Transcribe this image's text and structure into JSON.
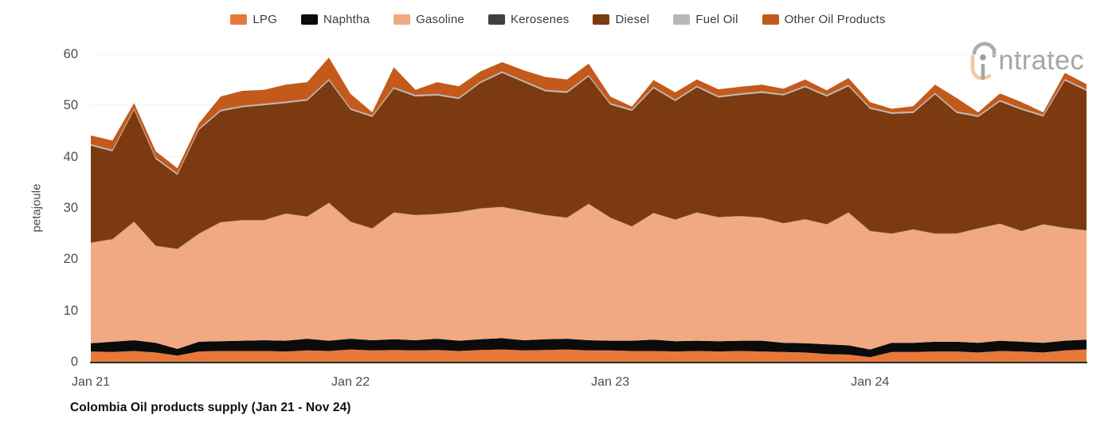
{
  "logo": {
    "text": "ntratec"
  },
  "colors": {
    "gridline": "#ededed",
    "axis_line": "#2a2a2a",
    "axis_text": "#4d4d4d",
    "title_text": "#0e0e0e",
    "logo_gray": "#a5a5a5",
    "logo_tan": "#eecaa2"
  },
  "chart_data": {
    "type": "area",
    "stacked": true,
    "title": "Colombia Oil products supply (Jan 21 - Nov 24)",
    "ylabel": "petajoule",
    "unit": "petajoule",
    "ylim": [
      0,
      60
    ],
    "yticks": [
      0,
      10,
      20,
      30,
      40,
      50,
      60
    ],
    "grid": "horizontal light gray lines",
    "legend_position": "top-center",
    "categories": [
      "Jan 21",
      "Feb 21",
      "Mar 21",
      "Apr 21",
      "May 21",
      "Jun 21",
      "Jul 21",
      "Aug 21",
      "Sep 21",
      "Oct 21",
      "Nov 21",
      "Dec 21",
      "Jan 22",
      "Feb 22",
      "Mar 22",
      "Apr 22",
      "May 22",
      "Jun 22",
      "Jul 22",
      "Aug 22",
      "Sep 22",
      "Oct 22",
      "Nov 22",
      "Dec 22",
      "Jan 23",
      "Feb 23",
      "Mar 23",
      "Apr 23",
      "May 23",
      "Jun 23",
      "Jul 23",
      "Aug 23",
      "Sep 23",
      "Oct 23",
      "Nov 23",
      "Dec 23",
      "Jan 24",
      "Feb 24",
      "Mar 24",
      "Apr 24",
      "May 24",
      "Jun 24",
      "Jul 24",
      "Aug 24",
      "Sep 24",
      "Oct 24",
      "Nov 24"
    ],
    "x_ticks": [
      {
        "label": "Jan 21",
        "index": 0
      },
      {
        "label": "Jan 22",
        "index": 12
      },
      {
        "label": "Jan 23",
        "index": 24
      },
      {
        "label": "Jan 24",
        "index": 36
      }
    ],
    "series": [
      {
        "name": "LPG",
        "color": "#e5793a",
        "values": [
          2.0,
          1.9,
          2.1,
          1.8,
          1.2,
          2.0,
          2.1,
          2.1,
          2.1,
          2.0,
          2.2,
          2.1,
          2.4,
          2.2,
          2.3,
          2.2,
          2.3,
          2.1,
          2.3,
          2.4,
          2.2,
          2.3,
          2.4,
          2.2,
          2.2,
          2.1,
          2.1,
          2.0,
          2.1,
          2.0,
          2.1,
          2.0,
          1.9,
          1.8,
          1.5,
          1.4,
          0.9,
          1.9,
          1.9,
          2.0,
          2.0,
          1.8,
          2.1,
          2.0,
          1.8,
          2.2,
          2.4
        ]
      },
      {
        "name": "Naphtha",
        "color": "#0b0b0b",
        "values": [
          1.6,
          2.0,
          2.1,
          1.9,
          1.3,
          1.9,
          1.9,
          2.0,
          2.1,
          2.1,
          2.3,
          2.0,
          2.1,
          2.0,
          2.1,
          2.0,
          2.2,
          2.0,
          2.1,
          2.2,
          2.0,
          2.1,
          2.1,
          2.0,
          1.9,
          2.0,
          2.2,
          2.0,
          2.0,
          2.0,
          2.0,
          2.1,
          1.8,
          1.8,
          1.9,
          1.8,
          1.5,
          1.8,
          1.8,
          1.9,
          1.9,
          1.9,
          2.0,
          1.9,
          1.9,
          1.9,
          1.9
        ]
      },
      {
        "name": "Gasoline",
        "color": "#f0a981",
        "values": [
          19.6,
          20.0,
          23.1,
          18.9,
          19.5,
          21.1,
          23.2,
          23.5,
          23.4,
          24.8,
          23.8,
          26.9,
          22.8,
          21.8,
          24.7,
          24.4,
          24.3,
          25.1,
          25.5,
          25.6,
          25.2,
          24.2,
          23.6,
          26.6,
          24.0,
          22.3,
          24.7,
          23.7,
          25.0,
          24.2,
          24.3,
          24.0,
          23.3,
          24.2,
          23.4,
          25.9,
          23.1,
          21.3,
          22.1,
          21.1,
          21.1,
          22.3,
          22.8,
          21.6,
          23.1,
          22.0,
          21.3
        ]
      },
      {
        "name": "Kerosenes",
        "color": "#3f4040",
        "values": [
          0.05,
          0.05,
          0.05,
          0.05,
          0.05,
          0.05,
          0.05,
          0.05,
          0.05,
          0.05,
          0.05,
          0.05,
          0.05,
          0.05,
          0.05,
          0.05,
          0.05,
          0.05,
          0.05,
          0.05,
          0.05,
          0.05,
          0.05,
          0.05,
          0.05,
          0.05,
          0.05,
          0.05,
          0.05,
          0.05,
          0.05,
          0.05,
          0.05,
          0.05,
          0.05,
          0.05,
          0.05,
          0.05,
          0.05,
          0.05,
          0.05,
          0.05,
          0.05,
          0.05,
          0.05,
          0.05,
          0.05
        ]
      },
      {
        "name": "Diesel",
        "color": "#7b3a10",
        "values": [
          18.9,
          17.1,
          21.8,
          16.9,
          14.4,
          20.2,
          21.6,
          22.0,
          22.4,
          21.5,
          22.6,
          23.8,
          21.8,
          21.7,
          24.1,
          23.1,
          23.1,
          22.0,
          24.4,
          26.1,
          25.1,
          24.1,
          24.3,
          24.8,
          22.0,
          22.5,
          24.3,
          23.1,
          24.4,
          23.3,
          23.6,
          24.3,
          24.9,
          25.7,
          24.9,
          24.6,
          23.8,
          23.3,
          22.7,
          27.1,
          23.5,
          21.7,
          23.8,
          23.6,
          21.0,
          28.7,
          27.2
        ]
      },
      {
        "name": "Fuel Oil",
        "color": "#b8b8b8",
        "values": [
          0.3,
          0.3,
          0.3,
          0.3,
          0.3,
          0.3,
          0.3,
          0.3,
          0.3,
          0.3,
          0.3,
          0.3,
          0.3,
          0.3,
          0.3,
          0.3,
          0.3,
          0.3,
          0.3,
          0.3,
          0.3,
          0.3,
          0.3,
          0.3,
          0.3,
          0.3,
          0.3,
          0.3,
          0.3,
          0.3,
          0.3,
          0.3,
          0.3,
          0.3,
          0.3,
          0.3,
          0.3,
          0.3,
          0.3,
          0.3,
          0.3,
          0.3,
          0.3,
          0.3,
          0.3,
          0.3,
          0.3
        ]
      },
      {
        "name": "Other Oil Products",
        "color": "#c35a1b",
        "values": [
          1.7,
          1.8,
          1.0,
          1.2,
          1.0,
          1.0,
          2.6,
          2.9,
          2.7,
          3.3,
          3.3,
          4.2,
          2.8,
          0.6,
          3.9,
          1.0,
          2.3,
          2.2,
          2.0,
          1.8,
          2.0,
          2.5,
          2.3,
          2.2,
          1.3,
          0.5,
          1.3,
          1.4,
          1.2,
          1.3,
          1.3,
          1.3,
          1.0,
          1.2,
          0.9,
          1.3,
          1.0,
          0.7,
          1.0,
          1.6,
          2.6,
          0.6,
          1.3,
          1.2,
          0.5,
          1.2,
          1.0
        ]
      }
    ]
  }
}
